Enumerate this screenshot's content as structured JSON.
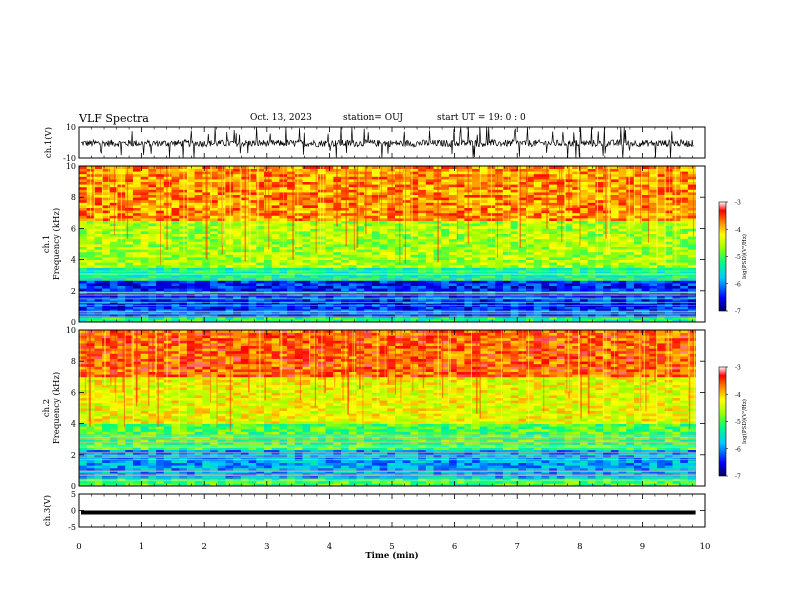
{
  "header": {
    "title": "VLF Spectra",
    "date": "Oct. 13, 2023",
    "station": "station= OUJ",
    "start_time": "start UT =   19: 0  : 0"
  },
  "chart_data": [
    {
      "type": "line",
      "name": "ch1-waveform",
      "ylabel": "ch.1(V)",
      "ylim": [
        -10,
        10
      ],
      "yticks": [
        "10",
        "-10"
      ],
      "description_series": "noisy amplitude trace near 0 V with frequent spikes",
      "xlim": [
        0,
        10
      ]
    },
    {
      "type": "heatmap",
      "name": "ch1-spectrogram",
      "ylabel": "ch.1\nFrequency (kHz)",
      "ylim": [
        0,
        10
      ],
      "yticks": [
        "0",
        "2",
        "4",
        "6",
        "8",
        "10"
      ],
      "xlim": [
        0,
        9.85
      ],
      "colorbar": {
        "label": "log(PSD)(V²/Hz)",
        "range": [
          -7,
          -3
        ],
        "ticks": [
          "-3",
          "-4",
          "-5",
          "-6",
          "-7"
        ],
        "colormap": [
          "#00007f",
          "#0000ff",
          "#00c8ff",
          "#00ff80",
          "#a0ff00",
          "#ffff00",
          "#ff8000",
          "#ff0000",
          "#ffffff"
        ]
      },
      "bands": [
        {
          "freq_khz": [
            0,
            0.4
          ],
          "level": -5.2
        },
        {
          "freq_khz": [
            0.4,
            2.6
          ],
          "level": -6.4
        },
        {
          "freq_khz": [
            2.6,
            3.5
          ],
          "level": -5.3
        },
        {
          "freq_khz": [
            3.5,
            6.5
          ],
          "level": -4.6
        },
        {
          "freq_khz": [
            6.5,
            10
          ],
          "level": -3.8
        }
      ]
    },
    {
      "type": "heatmap",
      "name": "ch2-spectrogram",
      "ylabel": "ch.2\nFrequency (kHz)",
      "ylim": [
        0,
        10
      ],
      "yticks": [
        "0",
        "2",
        "4",
        "6",
        "8",
        "10"
      ],
      "xlim": [
        0,
        9.85
      ],
      "colorbar": {
        "label": "log(PSD)(V²/Hz)",
        "range": [
          -7,
          -3
        ],
        "ticks": [
          "-3",
          "-4",
          "-5",
          "-6",
          "-7"
        ]
      },
      "bands": [
        {
          "freq_khz": [
            0,
            0.5
          ],
          "level": -5.0
        },
        {
          "freq_khz": [
            0.5,
            2.4
          ],
          "level": -5.9
        },
        {
          "freq_khz": [
            2.4,
            4.0
          ],
          "level": -5.0
        },
        {
          "freq_khz": [
            4.0,
            7.0
          ],
          "level": -4.3
        },
        {
          "freq_khz": [
            7.0,
            10
          ],
          "level": -3.6
        }
      ]
    },
    {
      "type": "line",
      "name": "ch3-trace",
      "ylabel": "ch.3(V)",
      "ylim": [
        -5,
        5
      ],
      "yticks": [
        "5",
        "0",
        "-5"
      ],
      "value_v": -0.6,
      "xlim": [
        0,
        9.85
      ]
    }
  ],
  "xaxis": {
    "label": "Time  (min)",
    "ticks": [
      "0",
      "1",
      "2",
      "3",
      "4",
      "5",
      "6",
      "7",
      "8",
      "9",
      "10"
    ],
    "xlim": [
      0,
      10
    ]
  }
}
